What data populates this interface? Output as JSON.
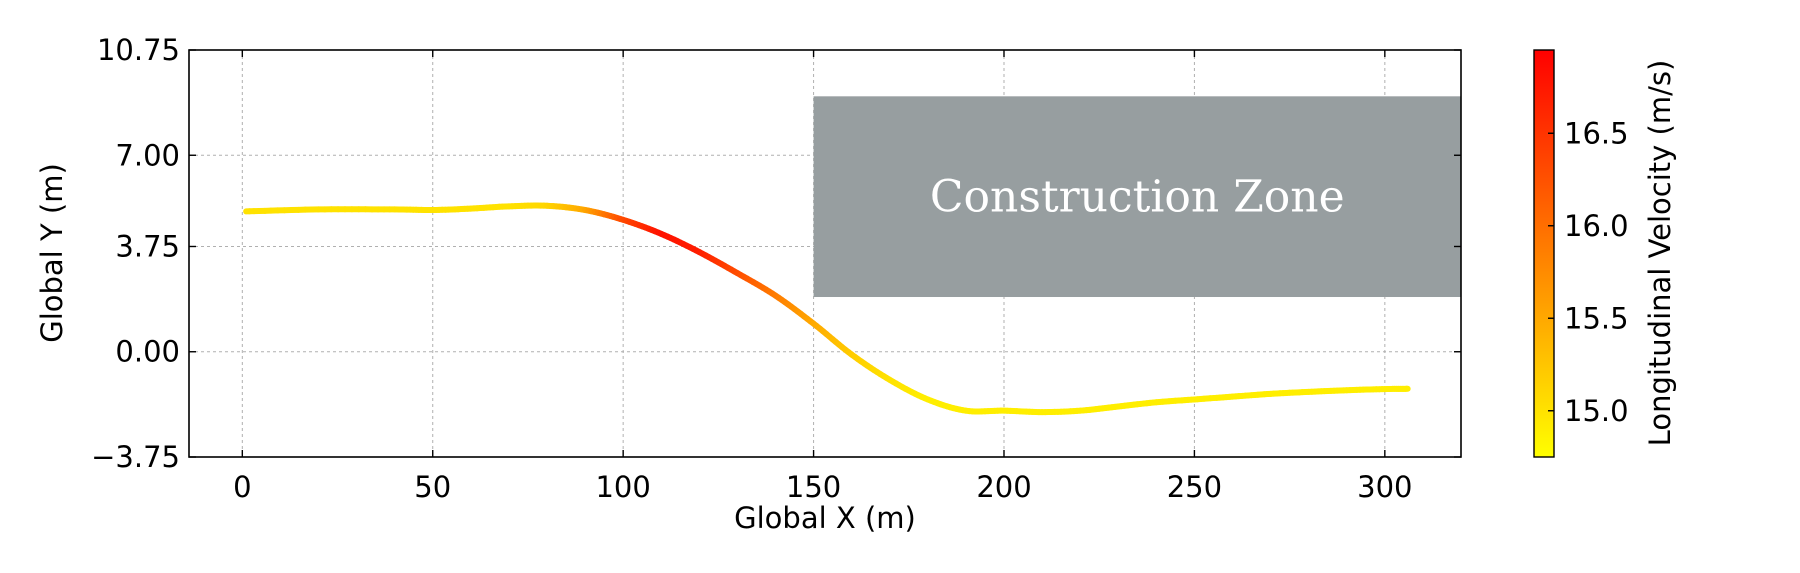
{
  "chart_data": {
    "type": "line",
    "xlabel": "Global X (m)",
    "ylabel": "Global Y (m)",
    "xlim": [
      -14,
      320
    ],
    "ylim": [
      -3.75,
      10.75
    ],
    "xticks": [
      0,
      50,
      100,
      150,
      200,
      250,
      300
    ],
    "yticks": [
      -3.75,
      0.0,
      3.75,
      7.0,
      10.75
    ],
    "ytick_labels": [
      "−3.75",
      "0.00",
      "3.75",
      "7.00",
      "10.75"
    ],
    "grid": true,
    "series": [
      {
        "x": [
          1,
          20,
          40,
          50,
          60,
          70,
          80,
          90,
          100,
          110,
          120,
          130,
          140,
          150,
          160,
          170,
          180,
          190,
          200,
          210,
          220,
          230,
          240,
          250,
          260,
          270,
          280,
          290,
          300,
          306
        ],
        "y": [
          5.0,
          5.07,
          5.07,
          5.05,
          5.1,
          5.18,
          5.2,
          5.05,
          4.7,
          4.2,
          3.55,
          2.8,
          2.0,
          1.0,
          -0.1,
          -1.0,
          -1.7,
          -2.1,
          -2.1,
          -2.15,
          -2.1,
          -1.95,
          -1.8,
          -1.7,
          -1.6,
          -1.5,
          -1.43,
          -1.37,
          -1.33,
          -1.32
        ],
        "velocity": [
          15.0,
          15.0,
          15.0,
          15.0,
          15.0,
          15.0,
          15.1,
          15.5,
          16.3,
          16.8,
          16.7,
          16.3,
          15.9,
          15.5,
          15.2,
          15.0,
          14.9,
          14.9,
          14.9,
          14.9,
          14.9,
          14.9,
          14.9,
          14.9,
          14.9,
          14.9,
          14.9,
          14.9,
          14.9,
          14.9
        ]
      }
    ],
    "annotations": [
      {
        "label": "Construction Zone",
        "x_range": [
          150,
          320
        ],
        "y_range": [
          1.95,
          9.1
        ],
        "color": "#979ea0"
      }
    ],
    "colorbar": {
      "label": "Longitudinal Velocity (m/s)",
      "range": [
        14.75,
        16.95
      ],
      "ticks": [
        15.0,
        15.5,
        16.0,
        16.5
      ],
      "tick_labels": [
        "15.0",
        "15.5",
        "16.0",
        "16.5"
      ],
      "colormap": [
        "#ffff00",
        "#ff0000"
      ]
    }
  }
}
